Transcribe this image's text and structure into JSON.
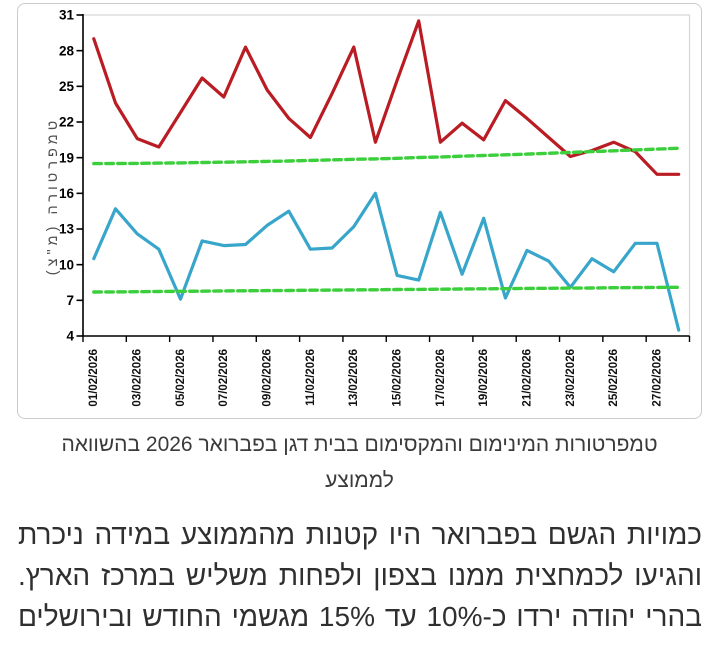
{
  "chart_data": {
    "type": "line",
    "title": "",
    "days": 28,
    "ylim": [
      4,
      31
    ],
    "yticks": [
      4,
      7,
      10,
      13,
      16,
      19,
      22,
      25,
      28,
      31
    ],
    "ylabel": "טמפרטורה (מ\"צ)",
    "x_labels": [
      "01/02/2026",
      "03/02/2026",
      "05/02/2026",
      "07/02/2026",
      "09/02/2026",
      "11/02/2026",
      "13/02/2026",
      "15/02/2026",
      "17/02/2026",
      "19/02/2026",
      "21/02/2026",
      "23/02/2026",
      "25/02/2026",
      "27/02/2026"
    ],
    "series": [
      {
        "name": "max-temp",
        "color": "#b91d23",
        "dashed": false,
        "values": [
          29,
          23.6,
          20.6,
          19.9,
          22.8,
          25.7,
          24.1,
          28.3,
          24.7,
          22.3,
          20.7,
          24.4,
          28.3,
          20.3,
          25.5,
          30.5,
          20.3,
          21.9,
          20.5,
          23.8,
          22.3,
          20.7,
          19.1,
          19.6,
          20.3,
          19.5,
          17.6,
          17.6
        ]
      },
      {
        "name": "min-temp",
        "color": "#38a5cb",
        "dashed": false,
        "values": [
          10.5,
          14.7,
          12.6,
          11.3,
          7.1,
          12,
          11.6,
          11.7,
          13.3,
          14.5,
          11.3,
          11.4,
          13.2,
          16,
          9.1,
          8.7,
          14.4,
          9.2,
          13.9,
          7.2,
          11.2,
          10.3,
          8.1,
          10.5,
          9.4,
          11.8,
          11.8,
          4.5
        ]
      },
      {
        "name": "avg-max",
        "color": "#3ccf3c",
        "dashed": true,
        "values": [
          18.5,
          18.51,
          18.52,
          18.54,
          18.56,
          18.59,
          18.62,
          18.65,
          18.69,
          18.72,
          18.77,
          18.81,
          18.86,
          18.9,
          18.95,
          19.01,
          19.06,
          19.12,
          19.18,
          19.24,
          19.3,
          19.37,
          19.44,
          19.51,
          19.58,
          19.65,
          19.72,
          19.8
        ]
      },
      {
        "name": "avg-min",
        "color": "#3ccf3c",
        "dashed": true,
        "values": [
          7.7,
          7.71,
          7.73,
          7.74,
          7.76,
          7.77,
          7.79,
          7.8,
          7.82,
          7.83,
          7.85,
          7.86,
          7.88,
          7.89,
          7.91,
          7.92,
          7.94,
          7.95,
          7.97,
          7.98,
          8,
          8.01,
          8.03,
          8.04,
          8.06,
          8.07,
          8.09,
          8.1
        ]
      }
    ]
  },
  "caption": {
    "lines": [
      "טמפרטורות המינימום והמקסימום בבית דגן בפברואר 2026 בהשוואה",
      "לממוצע"
    ]
  },
  "paragraph": {
    "lines": [
      "כמויות הגשם בפברואר היו קטנות מהממוצע במידה ניכרת",
      "והגיעו לכמחצית ממנו בצפון ולפחות משליש במרכז הארץ.",
      "בהרי יהודה ירדו כ-10% עד 15% מגשמי החודש ובירושלים"
    ]
  }
}
